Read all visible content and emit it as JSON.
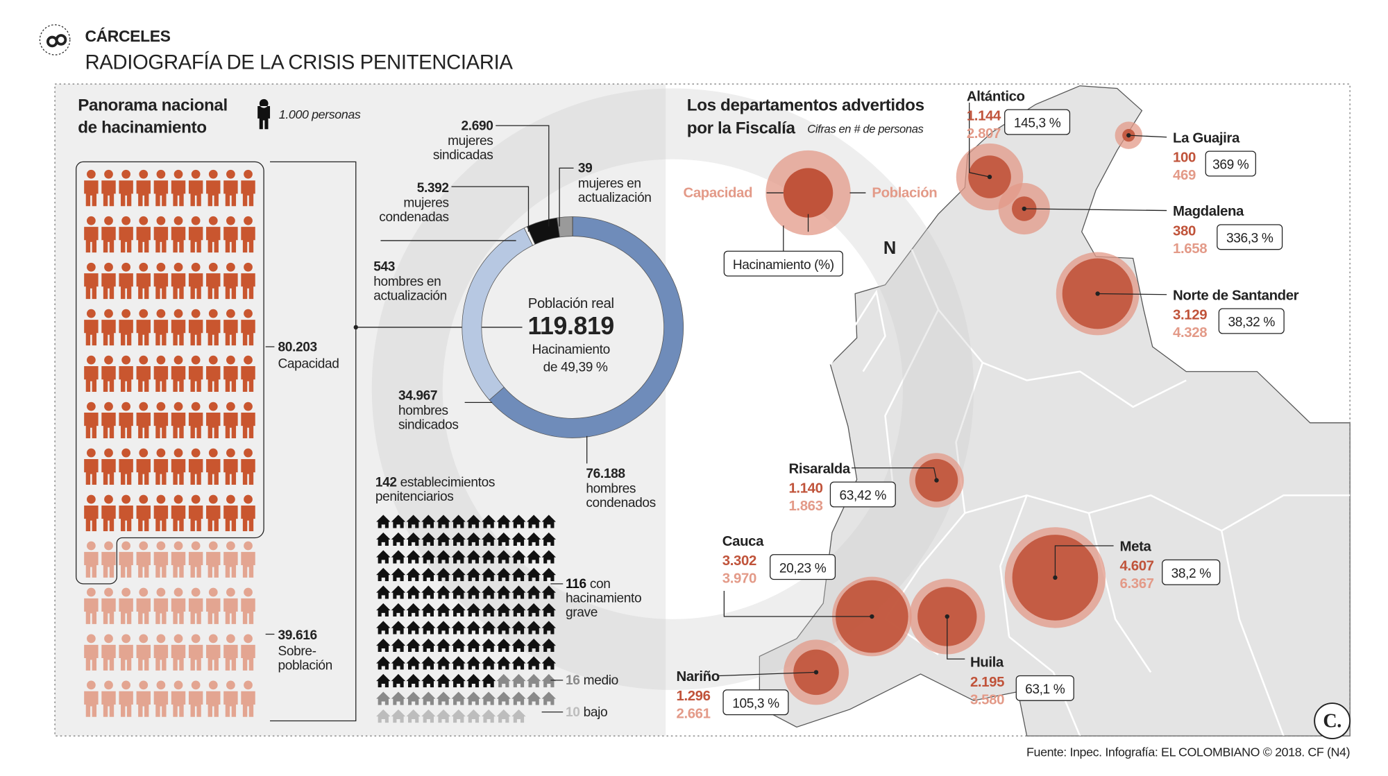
{
  "header": {
    "kicker": "CÁRCELES",
    "title": "RADIOGRAFÍA DE LA CRISIS PENITENCIARIA"
  },
  "panorama": {
    "title": [
      "Panorama nacional",
      "de hacinamiento"
    ],
    "unit": {
      "value": 1000,
      "label": "1.000 personas"
    },
    "capacity": {
      "value": 80203,
      "label": "80.203",
      "text": "Capacidad",
      "color": "#c9562f"
    },
    "overpopulation": {
      "value": 39616,
      "label": "39.616",
      "text": [
        "Sobre-",
        "población"
      ],
      "color": "#e3a591"
    }
  },
  "population": {
    "title": "Población real",
    "total": {
      "value": 119819,
      "label": "119.819"
    },
    "overcrowding": [
      "Hacinamiento",
      "de 49,39 %"
    ],
    "segments": [
      {
        "value": 76188,
        "label": "76.188",
        "text": [
          "hombres",
          "condenados"
        ],
        "color": "#6f8cba"
      },
      {
        "value": 34967,
        "label": "34.967",
        "text": [
          "hombres",
          "sindicados"
        ],
        "color": "#b7c8e2"
      },
      {
        "value": 543,
        "label": "543",
        "text": [
          "hombres en",
          "actualización"
        ],
        "color": "#f4f4f4"
      },
      {
        "value": 5392,
        "label": "5.392",
        "text": [
          "mujeres",
          "condenadas"
        ],
        "color": "#111111"
      },
      {
        "value": 2690,
        "label": "2.690",
        "text": [
          "mujeres",
          "sindicadas"
        ],
        "color": "#9a9a9a"
      },
      {
        "value": 39,
        "label": "39",
        "text": [
          "mujeres en",
          "actualización"
        ],
        "color": "#cccccc"
      }
    ]
  },
  "establishments": {
    "total": {
      "value": 142,
      "label": "142"
    },
    "text": [
      "establecimientos",
      "penitenciarios"
    ],
    "levels": [
      {
        "value": 116,
        "label": "116",
        "text": [
          "con",
          "hacinamiento",
          "grave"
        ],
        "color": "#111111"
      },
      {
        "value": 16,
        "label": "16",
        "text": [
          "medio"
        ],
        "color": "#8a8a8a"
      },
      {
        "value": 10,
        "label": "10",
        "text": [
          "bajo"
        ],
        "color": "#bdbdbd"
      }
    ]
  },
  "map": {
    "title": [
      "Los departamentos advertidos",
      "por la Fiscalía"
    ],
    "subtitle": "Cifras en # de personas",
    "legend": {
      "capacity": "Capacidad",
      "population": "Población",
      "overcrowding": "Hacinamiento (%)"
    },
    "compass": "N",
    "capacity_color": "#c0533a",
    "population_color": "#e39a88",
    "departments": [
      {
        "name": "Altántico",
        "capacity": {
          "value": 1144,
          "label": "1.144"
        },
        "population": {
          "value": 2807,
          "label": "2.807"
        },
        "overcrowding": "145,3 %"
      },
      {
        "name": "La Guajira",
        "capacity": {
          "value": 100,
          "label": "100"
        },
        "population": {
          "value": 469,
          "label": "469"
        },
        "overcrowding": "369 %"
      },
      {
        "name": "Magdalena",
        "capacity": {
          "value": 380,
          "label": "380"
        },
        "population": {
          "value": 1658,
          "label": "1.658"
        },
        "overcrowding": "336,3 %"
      },
      {
        "name": "Norte de Santander",
        "capacity": {
          "value": 3129,
          "label": "3.129"
        },
        "population": {
          "value": 4328,
          "label": "4.328"
        },
        "overcrowding": "38,32 %"
      },
      {
        "name": "Risaralda",
        "capacity": {
          "value": 1140,
          "label": "1.140"
        },
        "population": {
          "value": 1863,
          "label": "1.863"
        },
        "overcrowding": "63,42 %"
      },
      {
        "name": "Cauca",
        "capacity": {
          "value": 3302,
          "label": "3.302"
        },
        "population": {
          "value": 3970,
          "label": "3.970"
        },
        "overcrowding": "20,23 %"
      },
      {
        "name": "Huila",
        "capacity": {
          "value": 2195,
          "label": "2.195"
        },
        "population": {
          "value": 3580,
          "label": "3.580"
        },
        "overcrowding": "63,1 %"
      },
      {
        "name": "Meta",
        "capacity": {
          "value": 4607,
          "label": "4.607"
        },
        "population": {
          "value": 6367,
          "label": "6.367"
        },
        "overcrowding": "38,2 %"
      },
      {
        "name": "Nariño",
        "capacity": {
          "value": 1296,
          "label": "1.296"
        },
        "population": {
          "value": 2661,
          "label": "2.661"
        },
        "overcrowding": "105,3 %"
      }
    ]
  },
  "footer": "Fuente: Inpec. Infografía: EL COLOMBIANO © 2018. CF (N4)",
  "logo": "C."
}
